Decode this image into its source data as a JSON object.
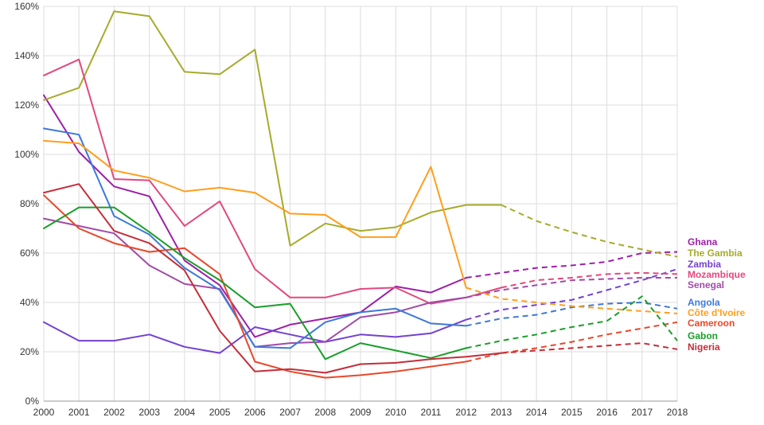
{
  "chart_data": {
    "type": "line",
    "title": "",
    "xlabel": "",
    "ylabel": "",
    "x": [
      2000,
      2001,
      2002,
      2003,
      2004,
      2005,
      2006,
      2007,
      2008,
      2009,
      2010,
      2011,
      2012,
      2013,
      2014,
      2015,
      2016,
      2017,
      2018
    ],
    "xlim": [
      2000,
      2018
    ],
    "ylim": [
      0,
      160
    ],
    "y_ticks": [
      0,
      20,
      40,
      60,
      80,
      100,
      120,
      140,
      160
    ],
    "y_tick_labels": [
      "0%",
      "20%",
      "40%",
      "60%",
      "80%",
      "100%",
      "120%",
      "140%",
      "160%"
    ],
    "grid": true,
    "legend_position": "right",
    "projection_note": "dashed segments are projections",
    "series": [
      {
        "name": "Ghana",
        "color": "#9c1fa8",
        "projected_from": 2012,
        "values": [
          124,
          101,
          87,
          83,
          57,
          47,
          26,
          31,
          33.5,
          36,
          46.5,
          44,
          50,
          52,
          54,
          55,
          56.5,
          60,
          60.5
        ]
      },
      {
        "name": "The Gambia",
        "color": "#a6ab2a",
        "projected_from": 2013,
        "values": [
          122,
          127,
          158,
          156,
          133.5,
          132.5,
          142.5,
          63,
          72,
          69,
          70.5,
          76.5,
          79.5,
          79.5,
          73,
          68.5,
          64.5,
          61.5,
          58.5
        ]
      },
      {
        "name": "Zambia",
        "color": "#7341d1",
        "projected_from": 2012,
        "values": [
          32,
          24.5,
          24.5,
          27,
          22,
          19.5,
          30,
          27,
          24,
          27,
          26,
          27.5,
          33,
          37,
          39,
          41,
          45,
          49,
          53.5
        ]
      },
      {
        "name": "Mozambique",
        "color": "#e3487e",
        "projected_from": 2013,
        "values": [
          132,
          138.5,
          90,
          89.5,
          71,
          81,
          53.5,
          42,
          42,
          45.5,
          46,
          39.5,
          42,
          46,
          49,
          50,
          51.5,
          52,
          51.5
        ]
      },
      {
        "name": "Senegal",
        "color": "#a14aa8",
        "projected_from": 2012,
        "values": [
          74,
          71,
          68,
          55,
          47.5,
          45.5,
          22,
          23.5,
          24,
          34,
          36,
          40,
          42,
          45,
          47,
          49,
          49.5,
          50,
          50
        ]
      },
      {
        "name": "Angola",
        "color": "#3d78d8",
        "projected_from": 2012,
        "values": [
          110.5,
          108,
          75,
          67.5,
          54,
          45,
          22,
          21.5,
          32,
          36,
          37.5,
          31.5,
          30.5,
          33.5,
          35,
          38,
          39.5,
          40,
          37.5
        ]
      },
      {
        "name": "Côte d'Ivoire",
        "color": "#ff9e1b",
        "projected_from": 2012,
        "values": [
          105.5,
          104.5,
          93.5,
          90.5,
          85,
          86.5,
          84.5,
          76,
          75.5,
          66.5,
          66.5,
          95,
          46,
          41.5,
          40,
          38.5,
          37.5,
          36.5,
          35.5
        ]
      },
      {
        "name": "Cameroon",
        "color": "#e8482a",
        "projected_from": 2012,
        "values": [
          83.5,
          70,
          64,
          60.5,
          62,
          51.5,
          16,
          12,
          9.5,
          10.5,
          12,
          14,
          16,
          19.5,
          21.5,
          24,
          27,
          29.5,
          32
        ]
      },
      {
        "name": "Gabon",
        "color": "#1a9e2a",
        "projected_from": 2012,
        "values": [
          70,
          78.5,
          78.5,
          68.5,
          58,
          49,
          38,
          39.5,
          17,
          23.5,
          20.5,
          17.5,
          21.5,
          24.5,
          27,
          30,
          32.5,
          42.5,
          24.5
        ]
      },
      {
        "name": "Nigeria",
        "color": "#c42e3a",
        "projected_from": 2013,
        "values": [
          84.5,
          88,
          69,
          64,
          53,
          28.5,
          12,
          13,
          11.5,
          15,
          15.5,
          17,
          18,
          19.5,
          20.5,
          21.5,
          22.5,
          23.5,
          21
        ]
      }
    ]
  }
}
